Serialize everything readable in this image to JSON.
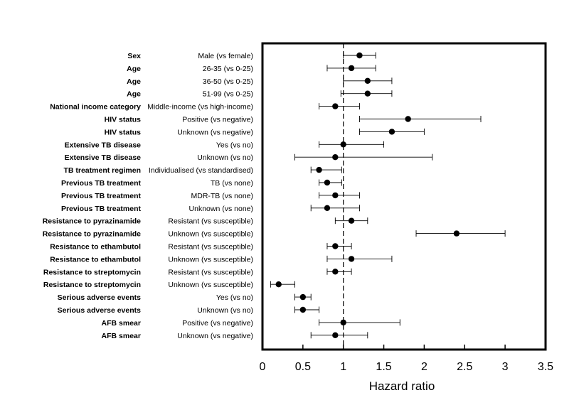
{
  "chart_data": {
    "type": "forest",
    "xlabel": "Hazard ratio",
    "xlim": [
      0,
      3.5
    ],
    "xticks": [
      0,
      0.5,
      1,
      1.5,
      2,
      2.5,
      3,
      3.5
    ],
    "xtick_labels": [
      "0",
      "0.5",
      "1",
      "1.5",
      "2",
      "2.5",
      "3",
      "3.5"
    ],
    "reference_line": 1,
    "rows": [
      {
        "variable": "Sex",
        "comparison": "Male (vs female)",
        "hr": 1.2,
        "lo": 1.0,
        "hi": 1.4
      },
      {
        "variable": "Age",
        "comparison": "26-35 (vs 0-25)",
        "hr": 1.1,
        "lo": 0.8,
        "hi": 1.4
      },
      {
        "variable": "Age",
        "comparison": "36-50 (vs 0-25)",
        "hr": 1.3,
        "lo": 1.0,
        "hi": 1.6
      },
      {
        "variable": "Age",
        "comparison": "51-99 (vs 0-25)",
        "hr": 1.3,
        "lo": 0.97,
        "hi": 1.6
      },
      {
        "variable": "National income category",
        "comparison": "Middle-income (vs high-income)",
        "hr": 0.9,
        "lo": 0.7,
        "hi": 1.2
      },
      {
        "variable": "HIV status",
        "comparison": "Positive (vs negative)",
        "hr": 1.8,
        "lo": 1.2,
        "hi": 2.7
      },
      {
        "variable": "HIV status",
        "comparison": "Unknown (vs negative)",
        "hr": 1.6,
        "lo": 1.2,
        "hi": 2.0
      },
      {
        "variable": "Extensive TB disease",
        "comparison": "Yes (vs no)",
        "hr": 1.0,
        "lo": 0.7,
        "hi": 1.5
      },
      {
        "variable": "Extensive TB disease",
        "comparison": "Unknown (vs no)",
        "hr": 0.9,
        "lo": 0.4,
        "hi": 2.1
      },
      {
        "variable": "TB treatment regimen",
        "comparison": "Individualised (vs standardised)",
        "hr": 0.7,
        "lo": 0.6,
        "hi": 0.98
      },
      {
        "variable": "Previous TB treatment",
        "comparison": "TB (vs none)",
        "hr": 0.8,
        "lo": 0.7,
        "hi": 0.98
      },
      {
        "variable": "Previous TB treatment",
        "comparison": "MDR-TB (vs none)",
        "hr": 0.9,
        "lo": 0.7,
        "hi": 1.2
      },
      {
        "variable": "Previous TB treatment",
        "comparison": "Unknown (vs none)",
        "hr": 0.8,
        "lo": 0.6,
        "hi": 1.2
      },
      {
        "variable": "Resistance to pyrazinamide",
        "comparison": "Resistant (vs susceptible)",
        "hr": 1.1,
        "lo": 0.9,
        "hi": 1.3
      },
      {
        "variable": "Resistance to pyrazinamide",
        "comparison": "Unknown (vs susceptible)",
        "hr": 2.4,
        "lo": 1.9,
        "hi": 3.0
      },
      {
        "variable": "Resistance to ethambutol",
        "comparison": "Resistant (vs susceptible)",
        "hr": 0.9,
        "lo": 0.8,
        "hi": 1.1
      },
      {
        "variable": "Resistance to ethambutol",
        "comparison": "Unknown (vs susceptible)",
        "hr": 1.1,
        "lo": 0.8,
        "hi": 1.6
      },
      {
        "variable": "Resistance to streptomycin",
        "comparison": "Resistant (vs susceptible)",
        "hr": 0.9,
        "lo": 0.8,
        "hi": 1.1
      },
      {
        "variable": "Resistance to streptomycin",
        "comparison": "Unknown (vs susceptible)",
        "hr": 0.2,
        "lo": 0.1,
        "hi": 0.4
      },
      {
        "variable": "Serious adverse events",
        "comparison": "Yes (vs no)",
        "hr": 0.5,
        "lo": 0.4,
        "hi": 0.6
      },
      {
        "variable": "Serious adverse events",
        "comparison": "Unknown (vs no)",
        "hr": 0.5,
        "lo": 0.4,
        "hi": 0.7
      },
      {
        "variable": "AFB smear",
        "comparison": "Positive (vs negative)",
        "hr": 1.0,
        "lo": 0.7,
        "hi": 1.7
      },
      {
        "variable": "AFB smear",
        "comparison": "Unknown (vs negative)",
        "hr": 0.9,
        "lo": 0.6,
        "hi": 1.3
      }
    ]
  }
}
